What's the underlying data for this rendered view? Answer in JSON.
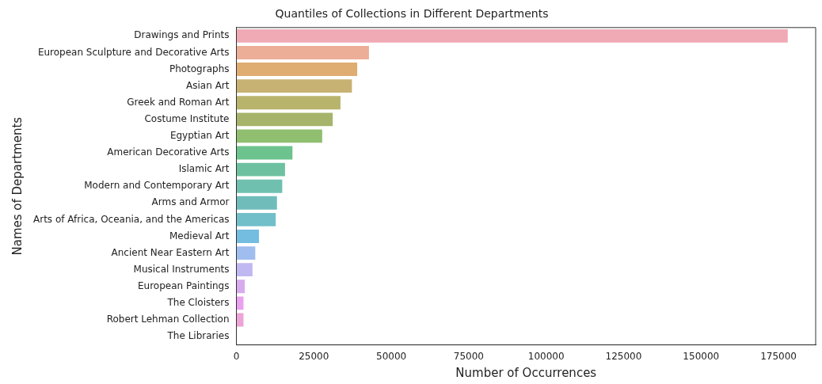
{
  "chart_data": {
    "type": "bar",
    "orientation": "horizontal",
    "title": "Quantiles of Collections in Different Departments",
    "xlabel": "Number of Occurrences",
    "ylabel": "Names of Departments",
    "categories": [
      "Drawings and Prints",
      "European Sculpture and Decorative Arts",
      "Photographs",
      "Asian Art",
      "Greek and Roman Art",
      "Costume Institute",
      "Egyptian Art",
      "American Decorative Arts",
      "Islamic Art",
      "Modern and Contemporary Art",
      "Arms and Armor",
      "Arts of Africa, Oceania, and the Americas",
      "Medieval Art",
      "Ancient Near Eastern Art",
      "Musical Instruments",
      "European Paintings",
      "The Cloisters",
      "Robert Lehman Collection",
      "The Libraries"
    ],
    "values": [
      178000,
      42800,
      39000,
      37300,
      33600,
      31100,
      27700,
      18100,
      15700,
      14800,
      13100,
      12700,
      7300,
      6100,
      5200,
      2700,
      2300,
      2300,
      null
    ],
    "colors": [
      "#f0aab5",
      "#edae97",
      "#dfad72",
      "#c8b273",
      "#b8b46c",
      "#a6b46b",
      "#8fbf6f",
      "#6cc38e",
      "#6dc1a0",
      "#70c0b0",
      "#6fbcbb",
      "#72bfca",
      "#74bde0",
      "#a0bdef",
      "#c0b8f0",
      "#d8abee",
      "#e9a2ef",
      "#eda4d6",
      "#f0a8c8"
    ],
    "xlim": [
      0,
      187000
    ],
    "xticks": [
      0,
      25000,
      50000,
      75000,
      100000,
      125000,
      150000,
      175000
    ],
    "grid": false,
    "legend": false
  }
}
